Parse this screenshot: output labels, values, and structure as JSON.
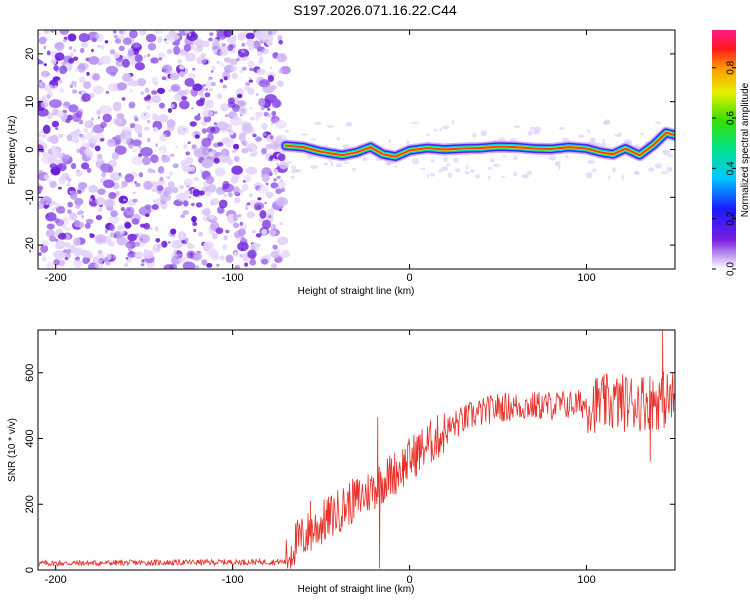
{
  "title": "S197.2026.071.16.22.C44",
  "chart_data": [
    {
      "type": "heatmap",
      "name": "spectrogram",
      "xlabel": "Height of straight line (km)",
      "ylabel": "Frequency (Hz)",
      "xlim": [
        -210,
        150
      ],
      "ylim": [
        -25,
        25
      ],
      "xticks": [
        -200,
        -100,
        0,
        100
      ],
      "yticks": [
        -20,
        -10,
        0,
        10,
        20
      ],
      "noise_region_x": [
        -210,
        -70
      ],
      "signal_region_x": [
        -70,
        150
      ],
      "signal_track": [
        [
          -70,
          0.8
        ],
        [
          -60,
          0.5
        ],
        [
          -52,
          -0.3
        ],
        [
          -45,
          -0.8
        ],
        [
          -38,
          -1.2
        ],
        [
          -30,
          -0.6
        ],
        [
          -22,
          0.5
        ],
        [
          -15,
          -1.0
        ],
        [
          -8,
          -1.5
        ],
        [
          0,
          -0.2
        ],
        [
          10,
          0.3
        ],
        [
          20,
          0.0
        ],
        [
          30,
          0.2
        ],
        [
          40,
          0.3
        ],
        [
          50,
          0.6
        ],
        [
          60,
          0.5
        ],
        [
          70,
          0.2
        ],
        [
          80,
          0.1
        ],
        [
          90,
          0.5
        ],
        [
          100,
          0.2
        ],
        [
          108,
          -0.6
        ],
        [
          115,
          -1.0
        ],
        [
          122,
          0.2
        ],
        [
          130,
          -1.2
        ],
        [
          138,
          1.0
        ],
        [
          145,
          3.5
        ],
        [
          150,
          3.0
        ]
      ],
      "colorbar": {
        "label": "Normalized spectral amplitude",
        "range": [
          0,
          0.95
        ],
        "ticks": [
          "0.0",
          "0.2",
          "0.4",
          "0.6",
          "0.8"
        ]
      }
    },
    {
      "type": "line",
      "name": "snr",
      "xlabel": "Height of straight line (km)",
      "ylabel": "SNR (10 * v/v)",
      "xlim": [
        -210,
        150
      ],
      "ylim": [
        0,
        730
      ],
      "xticks": [
        -200,
        -100,
        0,
        100
      ],
      "yticks": [
        0,
        200,
        400,
        600
      ],
      "color": "#e8302a",
      "envelope": [
        [
          -210,
          20
        ],
        [
          -70,
          25
        ],
        [
          -65,
          80
        ],
        [
          -55,
          120
        ],
        [
          -45,
          160
        ],
        [
          -35,
          200
        ],
        [
          -25,
          230
        ],
        [
          -15,
          270
        ],
        [
          -5,
          310
        ],
        [
          5,
          360
        ],
        [
          15,
          400
        ],
        [
          25,
          440
        ],
        [
          35,
          470
        ],
        [
          50,
          495
        ],
        [
          75,
          500
        ],
        [
          100,
          505
        ],
        [
          125,
          510
        ],
        [
          150,
          520
        ]
      ],
      "spikes": [
        [
          -18,
          465
        ],
        [
          -17,
          5
        ],
        [
          -56,
          210
        ],
        [
          120,
          560
        ],
        [
          143,
          730
        ],
        [
          136,
          330
        ]
      ]
    }
  ]
}
